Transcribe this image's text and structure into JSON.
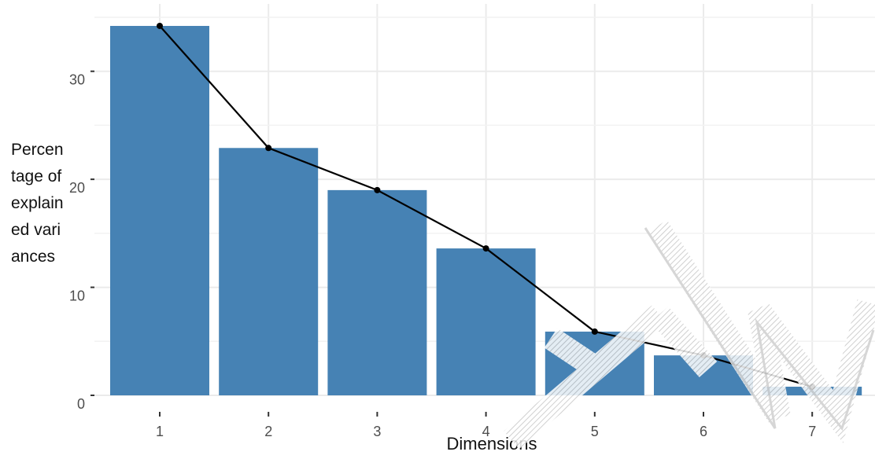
{
  "chart_data": {
    "type": "bar",
    "categories": [
      "1",
      "2",
      "3",
      "4",
      "5",
      "6",
      "7"
    ],
    "values": [
      34.2,
      22.9,
      19.0,
      13.6,
      5.9,
      3.7,
      0.8
    ],
    "line_overlay": true,
    "xlabel": "Dimensions",
    "ylabel": "Percentage of explained variances",
    "yticks": [
      0,
      10,
      20,
      30
    ],
    "ylim": [
      0,
      36.6
    ],
    "grid": true,
    "bar_color": "#4682B4",
    "line_color": "#000000",
    "watermark": "REVIEW"
  }
}
